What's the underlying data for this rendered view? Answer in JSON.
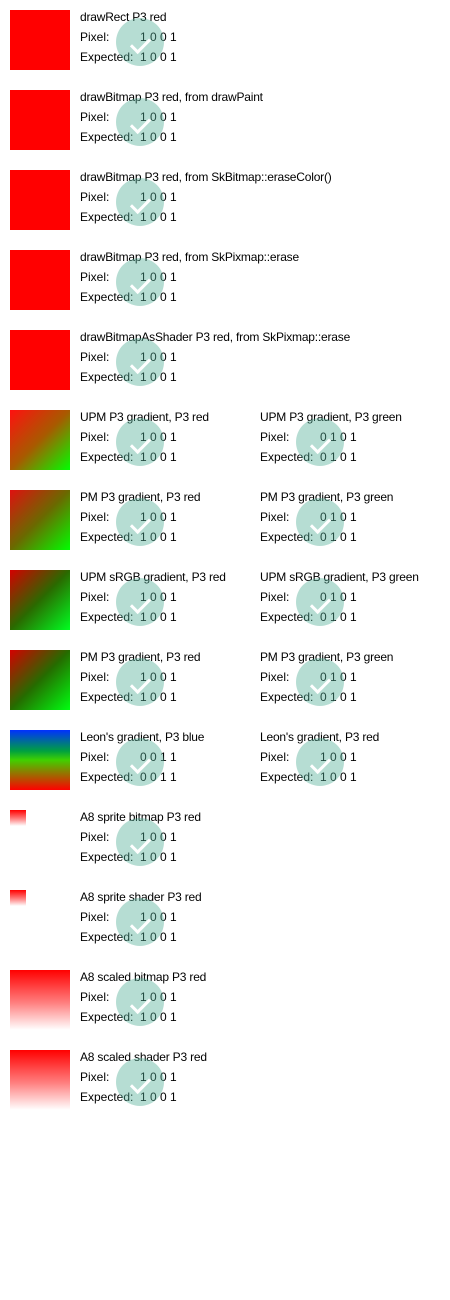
{
  "labels": {
    "pixel": "Pixel:",
    "expected": "Expected:"
  },
  "colors": {
    "p3_red": "#ff0000",
    "check_badge": "#8fcfbf"
  },
  "rows": [
    {
      "swatch": "solid-red",
      "entries": [
        {
          "title": "drawRect P3 red",
          "pixel": "1 0 0 1",
          "expected": "1 0 0 1"
        }
      ]
    },
    {
      "swatch": "solid-red",
      "entries": [
        {
          "title": "drawBitmap P3 red, from drawPaint",
          "pixel": "1 0 0 1",
          "expected": "1 0 0 1"
        }
      ]
    },
    {
      "swatch": "solid-red",
      "entries": [
        {
          "title": "drawBitmap P3 red, from SkBitmap::eraseColor()",
          "pixel": "1 0 0 1",
          "expected": "1 0 0 1"
        }
      ]
    },
    {
      "swatch": "solid-red",
      "entries": [
        {
          "title": "drawBitmap P3 red, from SkPixmap::erase",
          "pixel": "1 0 0 1",
          "expected": "1 0 0 1"
        }
      ]
    },
    {
      "swatch": "solid-red",
      "entries": [
        {
          "title": "drawBitmapAsShader P3 red, from SkPixmap::erase",
          "pixel": "1 0 0 1",
          "expected": "1 0 0 1"
        }
      ]
    },
    {
      "swatch": "gradient",
      "entries": [
        {
          "title": "UPM P3 gradient, P3 red",
          "pixel": "1 0 0 1",
          "expected": "1 0 0 1"
        },
        {
          "title": "UPM P3 gradient, P3 green",
          "pixel": "0 1 0 1",
          "expected": "0 1 0 1"
        }
      ]
    },
    {
      "swatch": "gradient",
      "entries": [
        {
          "title": "PM P3 gradient, P3 red",
          "pixel": "1 0 0 1",
          "expected": "1 0 0 1"
        },
        {
          "title": "PM P3 gradient, P3 green",
          "pixel": "0 1 0 1",
          "expected": "0 1 0 1"
        }
      ]
    },
    {
      "swatch": "gradient",
      "entries": [
        {
          "title": "UPM sRGB gradient, P3 red",
          "pixel": "1 0 0 1",
          "expected": "1 0 0 1"
        },
        {
          "title": "UPM sRGB gradient, P3 green",
          "pixel": "0 1 0 1",
          "expected": "0 1 0 1"
        }
      ]
    },
    {
      "swatch": "gradient",
      "entries": [
        {
          "title": "PM P3 gradient, P3 red",
          "pixel": "1 0 0 1",
          "expected": "1 0 0 1"
        },
        {
          "title": "PM P3 gradient, P3 green",
          "pixel": "0 1 0 1",
          "expected": "0 1 0 1"
        }
      ]
    },
    {
      "swatch": "gradient",
      "entries": [
        {
          "title": "Leon's gradient, P3 blue",
          "pixel": "0 0 1 1",
          "expected": "0 0 1 1"
        },
        {
          "title": "Leon's gradient, P3 red",
          "pixel": "1 0 0 1",
          "expected": "1 0 0 1"
        }
      ]
    },
    {
      "swatch": "fade-small",
      "entries": [
        {
          "title": "A8 sprite bitmap P3 red",
          "pixel": "1 0 0 1",
          "expected": "1 0 0 1"
        }
      ]
    },
    {
      "swatch": "fade-small",
      "entries": [
        {
          "title": "A8 sprite shader P3 red",
          "pixel": "1 0 0 1",
          "expected": "1 0 0 1"
        }
      ]
    },
    {
      "swatch": "fade",
      "entries": [
        {
          "title": "A8 scaled bitmap P3 red",
          "pixel": "1 0 0 1",
          "expected": "1 0 0 1"
        }
      ]
    },
    {
      "swatch": "fade",
      "entries": [
        {
          "title": "A8 scaled shader P3 red",
          "pixel": "1 0 0 1",
          "expected": "1 0 0 1"
        }
      ]
    }
  ]
}
